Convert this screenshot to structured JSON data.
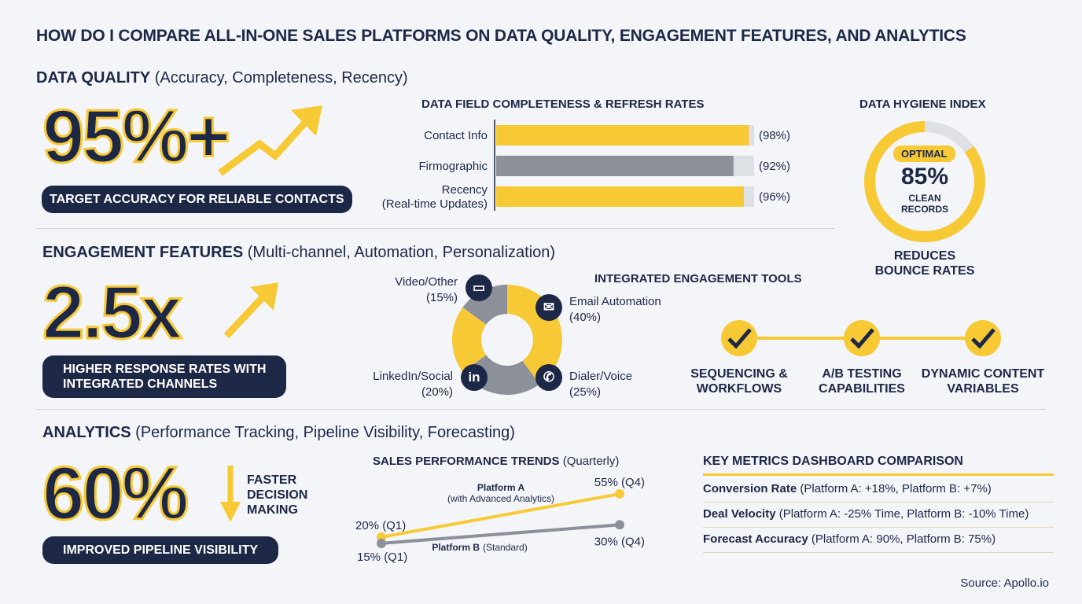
{
  "title": "HOW DO I COMPARE ALL-IN-ONE SALES PLATFORMS ON DATA QUALITY, ENGAGEMENT FEATURES, AND ANALYTICS",
  "colors": {
    "navy": "#1d2846",
    "yellow": "#f7c935",
    "gray": "#8b9099",
    "track": "#dde1e6",
    "background": "#f3f5f8"
  },
  "data_quality": {
    "heading": "DATA QUALITY",
    "subheading": "(Accuracy, Completeness, Recency)",
    "stat": "95%+",
    "stat_caption": "TARGET ACCURACY FOR RELIABLE CONTACTS",
    "icon": "arrow-up-right-icon"
  },
  "engagement": {
    "heading": "ENGAGEMENT FEATURES",
    "subheading": "(Multi-channel, Automation, Personalization)",
    "stat": "2.5x",
    "stat_caption_1": "HIGHER RESPONSE RATES WITH",
    "stat_caption_2": "INTEGRATED CHANNELS",
    "tools_title": "INTEGRATED ENGAGEMENT TOOLS",
    "tools": [
      {
        "l1": "SEQUENCING &",
        "l2": "WORKFLOWS"
      },
      {
        "l1": "A/B TESTING",
        "l2": "CAPABILITIES"
      },
      {
        "l1": "DYNAMIC CONTENT",
        "l2": "VARIABLES"
      }
    ]
  },
  "analytics": {
    "heading": "ANALYTICS",
    "subheading": "(Performance Tracking, Pipeline Visibility, Forecasting)",
    "stat": "60%",
    "side_1": "FASTER",
    "side_2": "DECISION",
    "side_3": "MAKING",
    "stat_caption": "IMPROVED PIPELINE VISIBILITY",
    "metrics_title": "KEY METRICS DASHBOARD COMPARISON",
    "metrics": [
      {
        "name": "Conversion Rate",
        "detail": "(Platform A: +18%, Platform B: +7%)"
      },
      {
        "name": "Deal Velocity",
        "detail": "(Platform A: -25% Time, Platform B: -10% Time)"
      },
      {
        "name": "Forecast Accuracy",
        "detail": "(Platform A: 90%, Platform B: 75%)"
      }
    ]
  },
  "hygiene": {
    "title": "DATA HYGIENE INDEX",
    "badge": "OPTIMAL",
    "value": "85%",
    "value_num": 85,
    "caption_1": "CLEAN",
    "caption_2": "RECORDS",
    "note_1": "REDUCES",
    "note_2": "BOUNCE RATES"
  },
  "source": "Source: Apollo.io",
  "chart_data": [
    {
      "type": "bar",
      "orientation": "horizontal",
      "title": "DATA FIELD COMPLETENESS & REFRESH RATES",
      "xlim": [
        0,
        100
      ],
      "categories": [
        "Contact Info",
        "Firmographic",
        "Recency (Real-time Updates)"
      ],
      "category_lines": [
        [
          "Contact Info"
        ],
        [
          "Firmographic"
        ],
        [
          "Recency",
          "(Real-time Updates)"
        ]
      ],
      "values": [
        98,
        92,
        96
      ],
      "labels": [
        "(98%)",
        "(92%)",
        "(96%)"
      ],
      "bar_colors": [
        "#f7c935",
        "#8b9099",
        "#f7c935"
      ]
    },
    {
      "type": "pie",
      "donut": true,
      "slices": [
        {
          "name": "Email Automation",
          "value": 40,
          "label": "(40%)",
          "color": "#f7c935",
          "icon": "envelope-icon"
        },
        {
          "name": "Dialer/Voice",
          "value": 25,
          "label": "(25%)",
          "color": "#8b9099",
          "icon": "phone-icon"
        },
        {
          "name": "LinkedIn/Social",
          "value": 20,
          "label": "(20%)",
          "color": "#f7c935",
          "icon": "linkedin-icon"
        },
        {
          "name": "Video/Other",
          "value": 15,
          "label": "(15%)",
          "color": "#8b9099",
          "icon": "video-camera-icon"
        }
      ]
    },
    {
      "type": "line",
      "title": "SALES PERFORMANCE TRENDS",
      "title_suffix": "(Quarterly)",
      "x": [
        "Q1",
        "Q4"
      ],
      "series": [
        {
          "name": "Platform A",
          "note": "(with Advanced Analytics)",
          "values": [
            20,
            55
          ],
          "labels": [
            "20% (Q1)",
            "55% (Q4)"
          ],
          "color": "#f7c935"
        },
        {
          "name": "Platform B",
          "note": "(Standard)",
          "values": [
            15,
            30
          ],
          "labels": [
            "15% (Q1)",
            "30% (Q4)"
          ],
          "color": "#8b9099"
        }
      ]
    }
  ]
}
